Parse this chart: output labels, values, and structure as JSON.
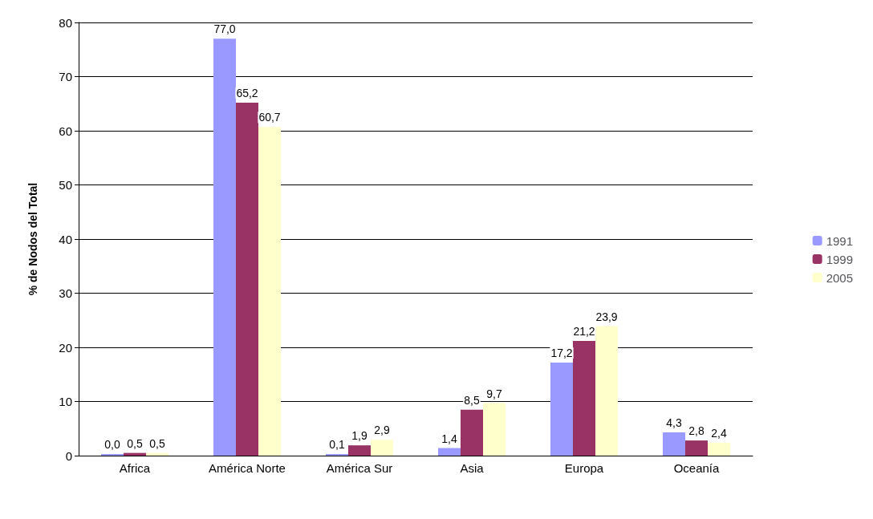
{
  "chart_data": {
    "type": "bar",
    "ylabel": "% de Nodos del Total",
    "categories": [
      "Africa",
      "América Norte",
      "América Sur",
      "Asia",
      "Europa",
      "Oceanía"
    ],
    "series": [
      {
        "name": "1991",
        "color": "#9999ff",
        "values": [
          0.0,
          77.0,
          0.1,
          1.4,
          17.2,
          4.3
        ],
        "value_labels": [
          "0,0",
          "77,0",
          "0,1",
          "1,4",
          "17,2",
          "4,3"
        ]
      },
      {
        "name": "1999",
        "color": "#993366",
        "values": [
          0.5,
          65.2,
          1.9,
          8.5,
          21.2,
          2.8
        ],
        "value_labels": [
          "0,5",
          "65,2",
          "1,9",
          "8,5",
          "21,2",
          "2,8"
        ]
      },
      {
        "name": "2005",
        "color": "#ffffcc",
        "values": [
          0.5,
          60.7,
          2.9,
          9.7,
          23.9,
          2.4
        ],
        "value_labels": [
          "0,5",
          "60,7",
          "2,9",
          "9,7",
          "23,9",
          "2,4"
        ]
      }
    ],
    "ylim": [
      0,
      80
    ],
    "yticks": [
      0,
      10,
      20,
      30,
      40,
      50,
      60,
      70,
      80
    ],
    "grid": "y",
    "legend": "right"
  }
}
